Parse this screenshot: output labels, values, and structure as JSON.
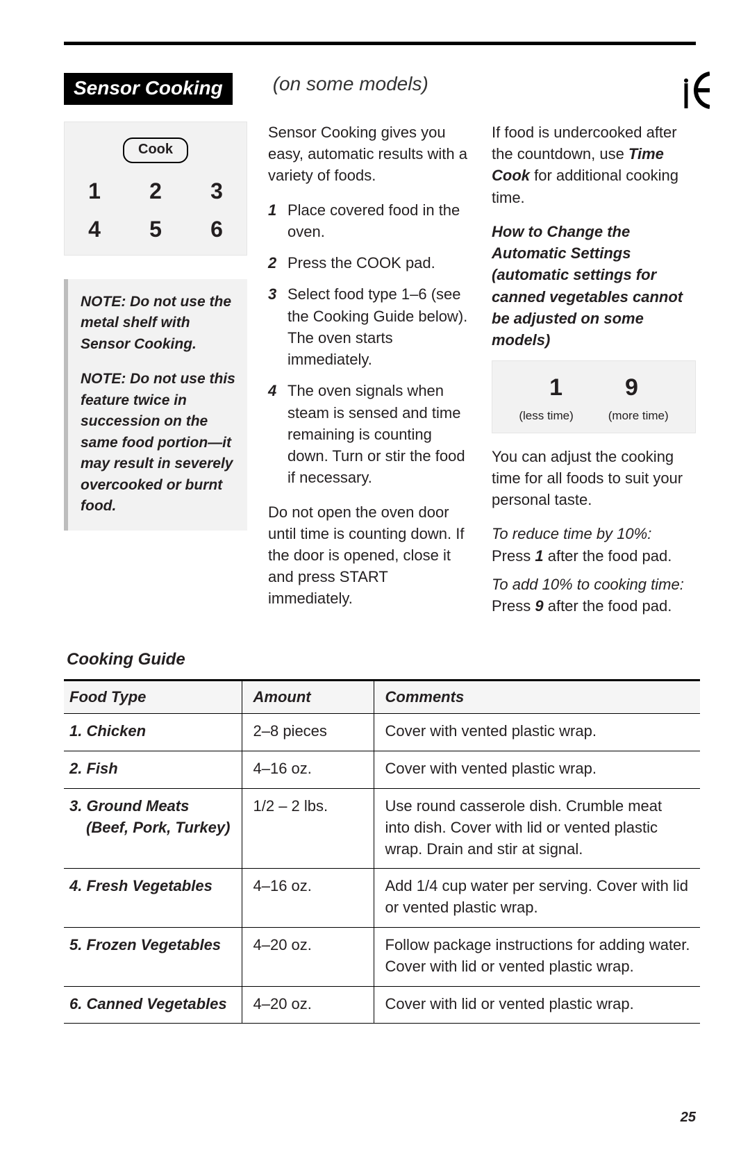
{
  "page_number": "25",
  "header": {
    "section_title": "Sensor Cooking",
    "subtitle": "(on some models)"
  },
  "keypad": {
    "button_label": "Cook",
    "numbers": [
      "1",
      "2",
      "3",
      "4",
      "5",
      "6"
    ]
  },
  "notes": {
    "note1": "NOTE: Do not use the metal shelf with Sensor Cooking.",
    "note2": "NOTE: Do not use this feature twice in succession on the same food portion—it may result in severely overcooked or burnt food."
  },
  "mid": {
    "intro": "Sensor Cooking gives you easy, automatic results with a variety of foods.",
    "steps": [
      "Place covered food in the oven.",
      "Press the COOK pad.",
      "Select food type 1–6 (see the Cooking Guide below). The oven starts immediately.",
      "The oven signals when steam is sensed and time remaining is counting down. Turn or stir the food if necessary."
    ],
    "tail": "Do not open the oven door until time is counting down. If the door is opened, close it and press START immediately."
  },
  "right": {
    "p1_a": "If food is undercooked after the countdown, use ",
    "p1_bold": "Time Cook",
    "p1_b": " for additional cooking time.",
    "howto": "How to Change the Automatic Settings (automatic settings for canned vegetables cannot be adjusted on some models)",
    "adjust": {
      "less_key": "1",
      "more_key": "9",
      "less_label": "(less time)",
      "more_label": "(more time)"
    },
    "p2": "You can adjust the cooking time for all foods to suit your personal taste.",
    "reduce_label": "To reduce time by 10%:",
    "reduce_text_a": "Press ",
    "reduce_key": "1",
    "reduce_text_b": " after the food pad.",
    "add_label": "To add 10% to cooking time:",
    "add_text_a": "Press ",
    "add_key": "9",
    "add_text_b": " after the food pad."
  },
  "table": {
    "title": "Cooking Guide",
    "headers": {
      "food": "Food Type",
      "amount": "Amount",
      "comments": "Comments"
    },
    "rows": [
      {
        "food": "1. Chicken",
        "sub": "",
        "amount": "2–8 pieces",
        "comments": "Cover with vented plastic wrap."
      },
      {
        "food": "2. Fish",
        "sub": "",
        "amount": "4–16 oz.",
        "comments": "Cover with vented plastic wrap."
      },
      {
        "food": "3. Ground Meats",
        "sub": "(Beef, Pork, Turkey)",
        "amount": "1/2 – 2 lbs.",
        "comments": "Use round casserole dish. Crumble meat into dish. Cover with lid or vented plastic wrap. Drain and stir at signal."
      },
      {
        "food": "4. Fresh Vegetables",
        "sub": "",
        "amount": "4–16 oz.",
        "comments": "Add 1/4 cup water per serving. Cover with lid or vented plastic wrap."
      },
      {
        "food": "5. Frozen Vegetables",
        "sub": "",
        "amount": "4–20 oz.",
        "comments": "Follow package instructions for adding water. Cover with lid or vented plastic wrap."
      },
      {
        "food": "6. Canned Vegetables",
        "sub": "",
        "amount": "4–20 oz.",
        "comments": "Cover with lid or vented plastic wrap."
      }
    ]
  }
}
